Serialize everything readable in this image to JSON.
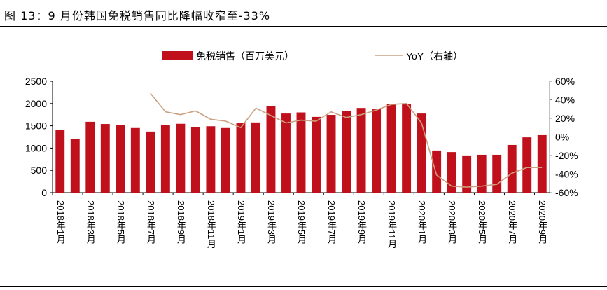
{
  "title": "图 13：9 月份韩国免税销售同比降幅收窄至-33%",
  "chart_data": {
    "type": "bar+line",
    "categories": [
      "2018年1月",
      "2018年2月",
      "2018年3月",
      "2018年4月",
      "2018年5月",
      "2018年6月",
      "2018年7月",
      "2018年8月",
      "2018年9月",
      "2018年10月",
      "2018年11月",
      "2018年12月",
      "2019年1月",
      "2019年2月",
      "2019年3月",
      "2019年4月",
      "2019年5月",
      "2019年6月",
      "2019年7月",
      "2019年8月",
      "2019年9月",
      "2019年10月",
      "2019年11月",
      "2019年12月",
      "2020年1月",
      "2020年2月",
      "2020年3月",
      "2020年4月",
      "2020年5月",
      "2020年6月",
      "2020年7月",
      "2020年8月",
      "2020年9月"
    ],
    "tick_labels": [
      "2018年1月",
      "2018年3月",
      "2018年5月",
      "2018年7月",
      "2018年9月",
      "2018年11月",
      "2019年1月",
      "2019年3月",
      "2019年5月",
      "2019年7月",
      "2019年9月",
      "2019年11月",
      "2020年1月",
      "2020年3月",
      "2020年5月",
      "2020年7月",
      "2020年9月"
    ],
    "series": [
      {
        "name": "免税销售（百万美元）",
        "type": "bar",
        "axis": "left",
        "color": "#c0101c",
        "values": [
          1410,
          1210,
          1590,
          1540,
          1510,
          1450,
          1370,
          1525,
          1545,
          1465,
          1490,
          1450,
          1560,
          1575,
          1950,
          1775,
          1800,
          1700,
          1745,
          1840,
          1900,
          1870,
          1995,
          1980,
          1775,
          945,
          910,
          835,
          850,
          850,
          1070,
          1240,
          1290
        ]
      },
      {
        "name": "YoY（右轴）",
        "type": "line",
        "axis": "right",
        "color": "#c9a080",
        "values": [
          null,
          null,
          null,
          null,
          null,
          null,
          47,
          27,
          24,
          28,
          19,
          17,
          10,
          31,
          23,
          15,
          18,
          17,
          27,
          21,
          24,
          29,
          35,
          36,
          15,
          -41,
          -53,
          -54,
          -53,
          -51,
          -39,
          -33,
          -33
        ]
      }
    ],
    "left_axis": {
      "min": 0,
      "max": 2500,
      "ticks": [
        "0",
        "500",
        "1000",
        "1500",
        "2000",
        "2500"
      ]
    },
    "right_axis": {
      "min": -60,
      "max": 60,
      "ticks": [
        "-60%",
        "-40%",
        "-20%",
        "0%",
        "20%",
        "40%",
        "60%"
      ]
    },
    "legend": "top"
  }
}
